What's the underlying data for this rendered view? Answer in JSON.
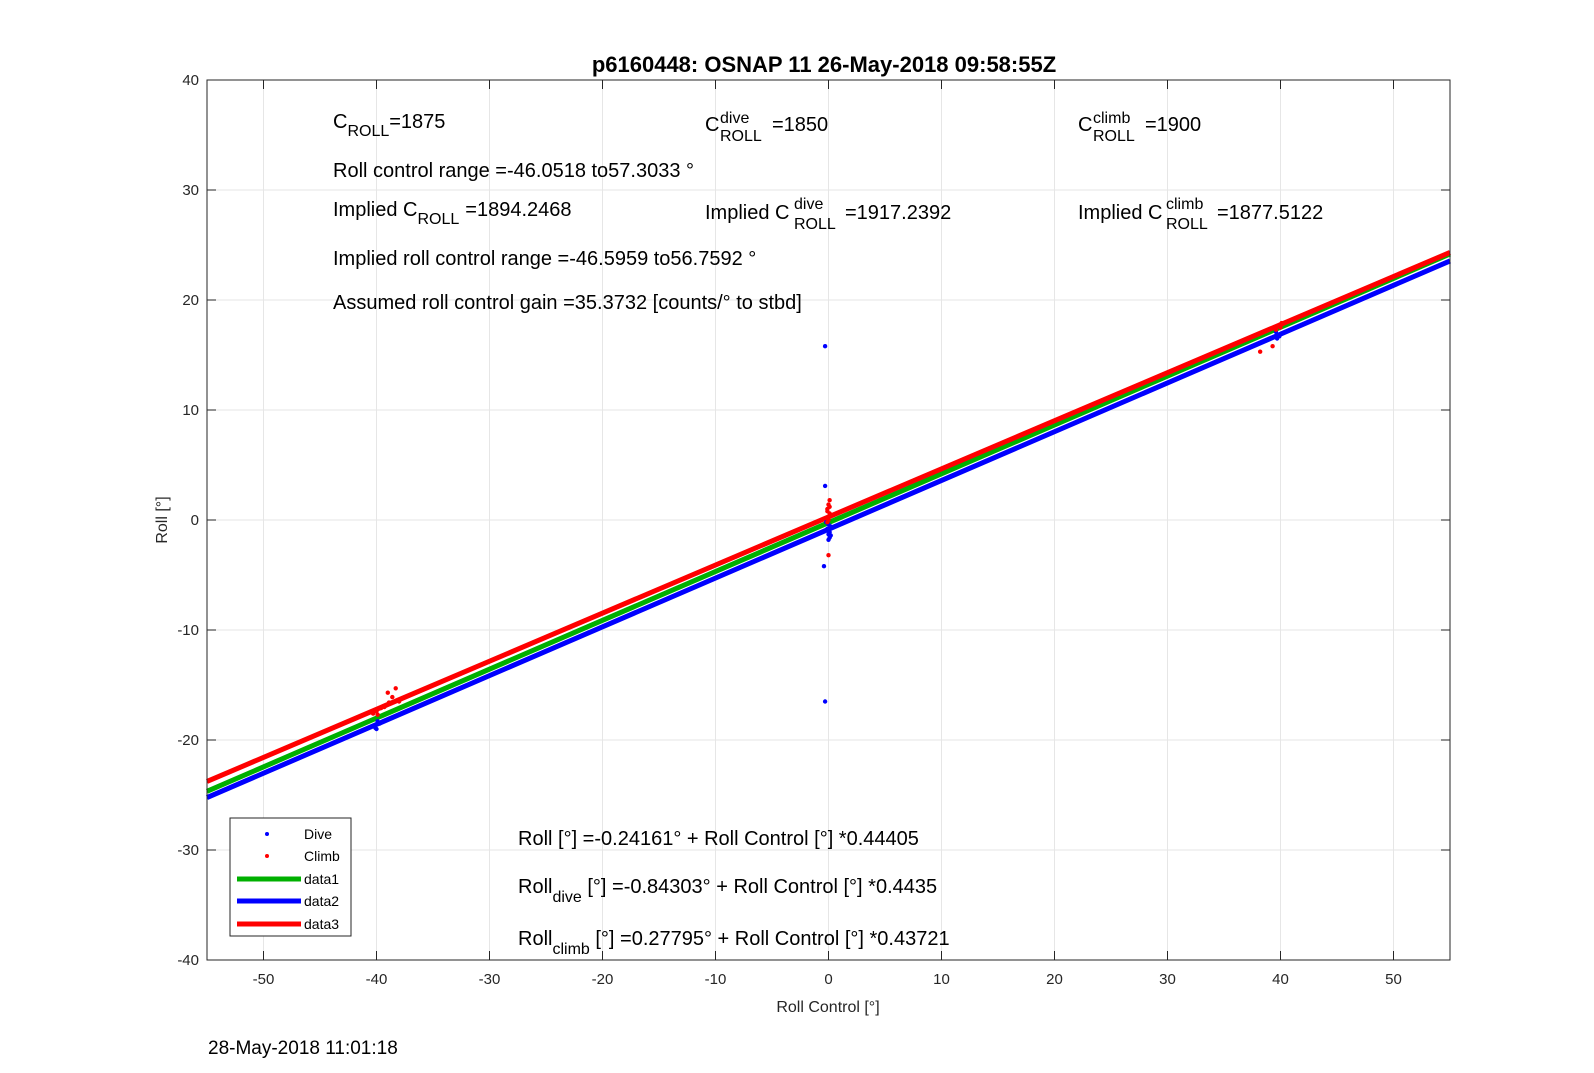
{
  "chart_data": {
    "type": "scatter",
    "title": "p6160448: OSNAP 11 26-May-2018 09:58:55Z",
    "xlabel": "Roll Control [°]",
    "ylabel": "Roll [°]",
    "xlim": [
      -55,
      55
    ],
    "ylim": [
      -40,
      40
    ],
    "xticks": [
      -50,
      -40,
      -30,
      -20,
      -10,
      0,
      10,
      20,
      30,
      40,
      50
    ],
    "yticks": [
      -40,
      -30,
      -20,
      -10,
      0,
      10,
      20,
      30,
      40
    ],
    "grid": true,
    "legend_position": "bottom-left",
    "colors": {
      "dive": "#0000ff",
      "climb": "#ff0000",
      "data1": "#00b000",
      "data2": "#0000ff",
      "data3": "#ff0000"
    },
    "series": [
      {
        "name": "Dive",
        "kind": "scatter",
        "color": "#0000ff",
        "points": [
          [
            -40.1,
            -18.9
          ],
          [
            -40.0,
            -18.6
          ],
          [
            -39.9,
            -18.3
          ],
          [
            -40.2,
            -18.7
          ],
          [
            -39.7,
            -18.5
          ],
          [
            -40.0,
            -19.0
          ],
          [
            -0.3,
            15.8
          ],
          [
            -0.3,
            3.1
          ],
          [
            -0.4,
            -4.2
          ],
          [
            -0.3,
            -16.5
          ],
          [
            0.0,
            -0.4
          ],
          [
            -0.1,
            -0.8
          ],
          [
            0.1,
            -1.1
          ],
          [
            0.0,
            -1.3
          ],
          [
            0.2,
            -0.6
          ],
          [
            -0.2,
            -0.2
          ],
          [
            0.1,
            -1.6
          ],
          [
            0.0,
            -0.9
          ],
          [
            0.2,
            -1.4
          ],
          [
            0.0,
            -1.8
          ],
          [
            39.7,
            16.5
          ],
          [
            39.8,
            16.8
          ],
          [
            39.6,
            17.1
          ],
          [
            39.9,
            16.7
          ]
        ]
      },
      {
        "name": "Climb",
        "kind": "scatter",
        "color": "#ff0000",
        "points": [
          [
            -39.0,
            -15.7
          ],
          [
            -38.3,
            -15.3
          ],
          [
            -38.6,
            -16.1
          ],
          [
            -38.9,
            -16.6
          ],
          [
            -39.6,
            -17.1
          ],
          [
            -40.0,
            -17.4
          ],
          [
            -40.3,
            -17.6
          ],
          [
            -39.3,
            -17.0
          ],
          [
            -38.0,
            -16.5
          ],
          [
            -39.9,
            -17.7
          ],
          [
            0.0,
            0.2
          ],
          [
            0.1,
            0.6
          ],
          [
            -0.1,
            1.0
          ],
          [
            0.0,
            1.4
          ],
          [
            0.1,
            1.8
          ],
          [
            -0.1,
            -0.2
          ],
          [
            0.0,
            -3.2
          ],
          [
            0.2,
            0.4
          ],
          [
            -0.1,
            0.8
          ],
          [
            0.0,
            0.0
          ],
          [
            0.1,
            1.2
          ],
          [
            38.2,
            15.3
          ],
          [
            39.3,
            15.8
          ],
          [
            39.8,
            17.6
          ],
          [
            40.1,
            17.9
          ],
          [
            39.6,
            17.3
          ],
          [
            40.0,
            17.5
          ]
        ]
      },
      {
        "name": "data1",
        "kind": "line",
        "color": "#00b000",
        "intercept": -0.24161,
        "slope": 0.44405
      },
      {
        "name": "data2",
        "kind": "line",
        "color": "#0000ff",
        "intercept": -0.84303,
        "slope": 0.4435
      },
      {
        "name": "data3",
        "kind": "line",
        "color": "#ff0000",
        "intercept": 0.27795,
        "slope": 0.43721
      }
    ],
    "annotations": {
      "c_roll": {
        "main": "C",
        "sub": "ROLL",
        "value": "=1875"
      },
      "c_roll_dive": {
        "main": "C",
        "sub": "ROLL",
        "sup": "dive",
        "value": "=1850"
      },
      "c_roll_climb": {
        "main": "C",
        "sub": "ROLL",
        "sup": "climb",
        "value": "=1900"
      },
      "roll_range": "Roll control range =-46.0518 to57.3033 °",
      "implied_c_roll": {
        "prefix": "Implied C",
        "sub": "ROLL",
        "value": "=1894.2468"
      },
      "implied_c_roll_dive": {
        "prefix": "Implied C",
        "sub": "ROLL",
        "sup": "dive",
        "value": "=1917.2392"
      },
      "implied_c_roll_climb": {
        "prefix": "Implied C",
        "sub": "ROLL",
        "sup": "climb",
        "value": "=1877.5122"
      },
      "implied_range": "Implied roll control range =-46.5959 to56.7592 °",
      "gain": "Assumed roll control gain =35.3732 [counts/° to stbd]",
      "eq_all": "Roll [°] =-0.24161° + Roll Control [°] *0.44405",
      "eq_dive": {
        "main": "Roll",
        "sub": "dive",
        "rest": " [°] =-0.84303° + Roll Control [°] *0.4435"
      },
      "eq_climb": {
        "main": "Roll",
        "sub": "climb",
        "rest": " [°] =0.27795° + Roll Control [°] *0.43721"
      }
    },
    "footer": "28-May-2018 11:01:18"
  }
}
